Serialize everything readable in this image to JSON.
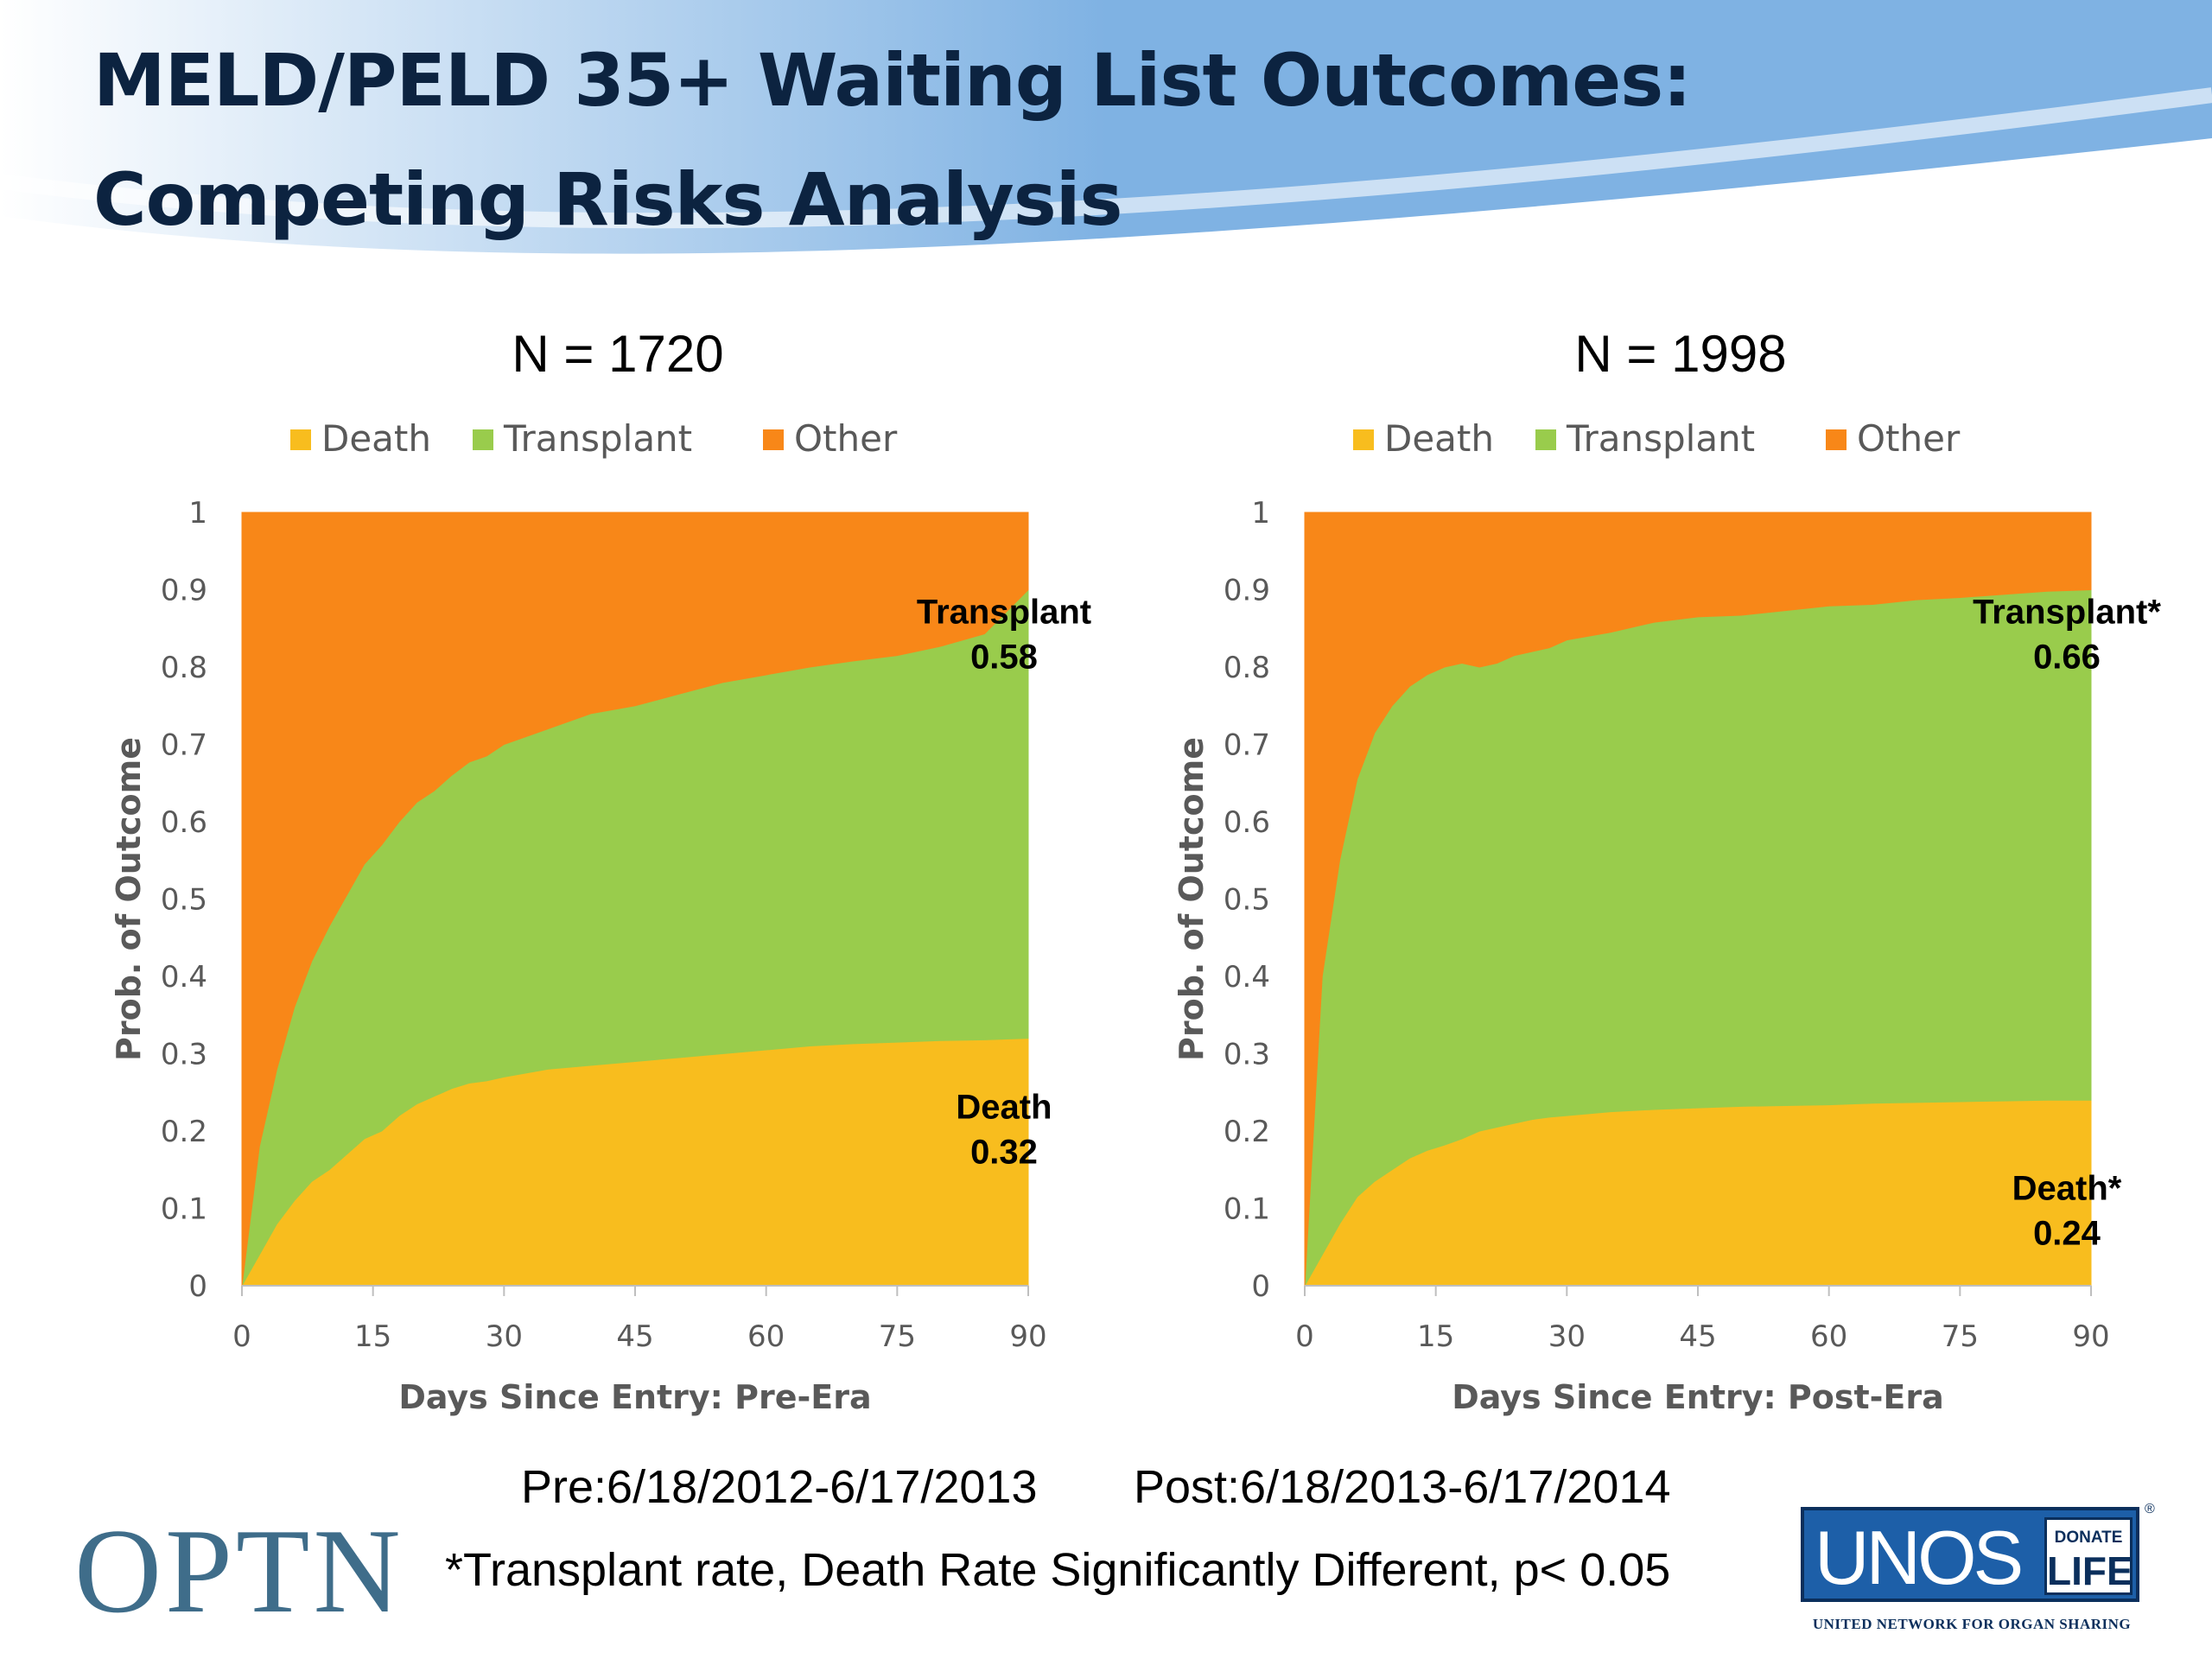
{
  "slide": {
    "title_line_1": "MELD/PELD 35+ Waiting List Outcomes:",
    "title_line_2": "Competing Risks Analysis",
    "era_pre": "Pre:6/18/2012-6/17/2013",
    "era_post": "Post:6/18/2013-6/17/2014",
    "footnote": "*Transplant rate, Death Rate Significantly Different, p< 0.05",
    "header_colors": {
      "light": "#ffffff",
      "blue": "#7fb2e3"
    }
  },
  "logos": {
    "optn": "OPTN",
    "unos": "UNOS",
    "donate": "DONATE",
    "life": "LIFE",
    "registered": "®",
    "unos_tagline": "UNITED NETWORK FOR ORGAN SHARING",
    "optn_color": "#3f6d8a",
    "unos_color": "#1d5fa8"
  },
  "chart_data": [
    {
      "type": "area",
      "stacked": true,
      "sample_size_label": "N = 1720",
      "xlabel": "Days Since Entry: Pre-Era",
      "ylabel": "Prob. of Outcome",
      "xlim": [
        0,
        90
      ],
      "ylim": [
        0,
        1
      ],
      "x_ticks": [
        "0",
        "15",
        "30",
        "45",
        "60",
        "75",
        "90"
      ],
      "y_ticks": [
        "0",
        "0.1",
        "0.2",
        "0.3",
        "0.4",
        "0.5",
        "0.6",
        "0.7",
        "0.8",
        "0.9",
        "1"
      ],
      "legend_position": "top",
      "grid": false,
      "x": [
        0,
        2,
        4,
        6,
        8,
        10,
        12,
        14,
        16,
        18,
        20,
        22,
        24,
        26,
        28,
        30,
        35,
        40,
        45,
        50,
        55,
        60,
        65,
        70,
        75,
        80,
        85,
        90
      ],
      "series": [
        {
          "name": "Death",
          "color": "#f8bd1e",
          "values": [
            0.0,
            0.04,
            0.08,
            0.11,
            0.135,
            0.15,
            0.17,
            0.19,
            0.2,
            0.22,
            0.235,
            0.245,
            0.255,
            0.262,
            0.265,
            0.27,
            0.28,
            0.285,
            0.29,
            0.295,
            0.3,
            0.305,
            0.31,
            0.313,
            0.315,
            0.317,
            0.318,
            0.32
          ]
        },
        {
          "name": "Transplant",
          "color": "#99cc4c",
          "values": [
            0.0,
            0.14,
            0.2,
            0.25,
            0.285,
            0.315,
            0.335,
            0.355,
            0.37,
            0.38,
            0.39,
            0.395,
            0.405,
            0.415,
            0.42,
            0.43,
            0.44,
            0.455,
            0.46,
            0.47,
            0.48,
            0.485,
            0.49,
            0.495,
            0.5,
            0.51,
            0.525,
            0.58
          ]
        },
        {
          "name": "Other",
          "color": "#f88718",
          "values": [
            1.0,
            0.82,
            0.72,
            0.64,
            0.58,
            0.535,
            0.495,
            0.455,
            0.43,
            0.4,
            0.375,
            0.36,
            0.34,
            0.323,
            0.315,
            0.3,
            0.28,
            0.26,
            0.25,
            0.235,
            0.22,
            0.21,
            0.2,
            0.192,
            0.185,
            0.173,
            0.157,
            0.1
          ]
        }
      ],
      "annotations": [
        {
          "lines": [
            "Transplant",
            "0.58"
          ],
          "series": "Transplant"
        },
        {
          "lines": [
            "Death",
            "0.32"
          ],
          "series": "Death"
        }
      ]
    },
    {
      "type": "area",
      "stacked": true,
      "sample_size_label": "N = 1998",
      "xlabel": "Days Since Entry: Post-Era",
      "ylabel": "Prob. of Outcome",
      "xlim": [
        0,
        90
      ],
      "ylim": [
        0,
        1
      ],
      "x_ticks": [
        "0",
        "15",
        "30",
        "45",
        "60",
        "75",
        "90"
      ],
      "y_ticks": [
        "0",
        "0.1",
        "0.2",
        "0.3",
        "0.4",
        "0.5",
        "0.6",
        "0.7",
        "0.8",
        "0.9",
        "1"
      ],
      "legend_position": "top",
      "grid": false,
      "x": [
        0,
        2,
        4,
        6,
        8,
        10,
        12,
        14,
        16,
        18,
        20,
        22,
        24,
        26,
        28,
        30,
        35,
        40,
        45,
        50,
        55,
        60,
        65,
        70,
        75,
        80,
        85,
        90
      ],
      "series": [
        {
          "name": "Death",
          "color": "#f8bd1e",
          "values": [
            0.0,
            0.04,
            0.08,
            0.115,
            0.135,
            0.15,
            0.165,
            0.175,
            0.182,
            0.19,
            0.2,
            0.205,
            0.21,
            0.215,
            0.218,
            0.22,
            0.225,
            0.228,
            0.23,
            0.232,
            0.233,
            0.234,
            0.236,
            0.237,
            0.238,
            0.239,
            0.24,
            0.24
          ]
        },
        {
          "name": "Transplant",
          "color": "#99cc4c",
          "values": [
            0.0,
            0.36,
            0.47,
            0.54,
            0.58,
            0.6,
            0.61,
            0.615,
            0.618,
            0.615,
            0.6,
            0.6,
            0.605,
            0.605,
            0.607,
            0.615,
            0.62,
            0.63,
            0.635,
            0.635,
            0.64,
            0.645,
            0.645,
            0.65,
            0.652,
            0.655,
            0.658,
            0.66
          ]
        },
        {
          "name": "Other",
          "color": "#f88718",
          "values": [
            1.0,
            0.6,
            0.45,
            0.345,
            0.285,
            0.25,
            0.225,
            0.21,
            0.2,
            0.195,
            0.2,
            0.195,
            0.185,
            0.18,
            0.175,
            0.165,
            0.155,
            0.142,
            0.135,
            0.133,
            0.127,
            0.121,
            0.119,
            0.113,
            0.11,
            0.106,
            0.102,
            0.1
          ]
        }
      ],
      "annotations": [
        {
          "lines": [
            "Transplant*",
            "0.66"
          ],
          "series": "Transplant"
        },
        {
          "lines": [
            "Death*",
            "0.24"
          ],
          "series": "Death"
        }
      ]
    }
  ]
}
